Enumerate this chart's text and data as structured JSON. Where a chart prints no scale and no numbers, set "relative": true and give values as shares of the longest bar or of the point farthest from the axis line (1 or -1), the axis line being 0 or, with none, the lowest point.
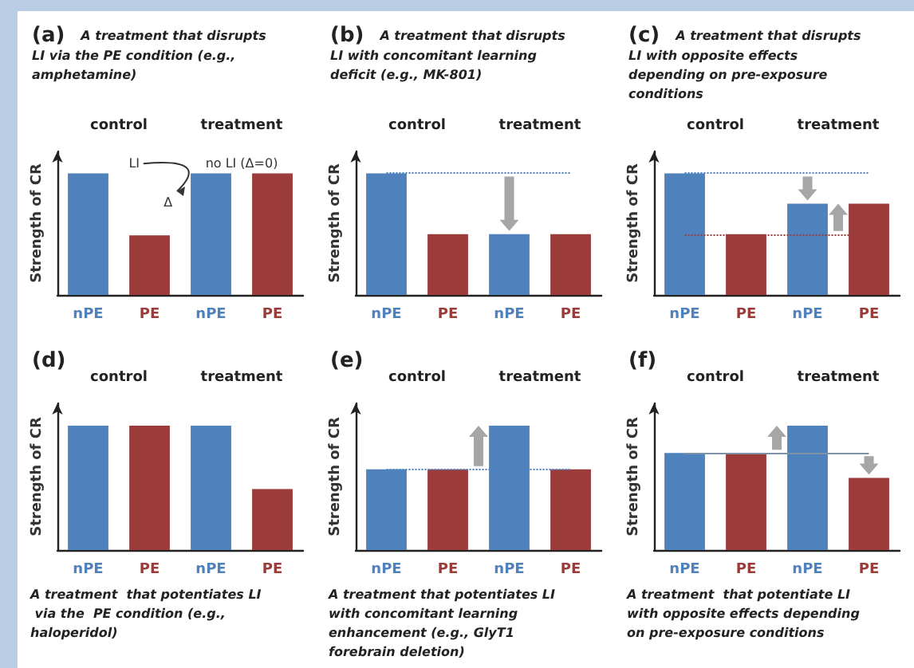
{
  "chart_data": [
    {
      "type": "bar",
      "title": "(a) A treatment that disrupts LI via the PE condition (e.g., amphetamine)",
      "ylabel": "Strength of CR",
      "categories": [
        "nPE",
        "PE",
        "nPE",
        "PE"
      ],
      "values": [
        1,
        0.49,
        1,
        1
      ],
      "colors": [
        "#4f81bd",
        "#9b3b3a",
        "#4f81bd",
        "#9b3b3a"
      ],
      "relative": true,
      "annotations": [
        "control",
        "treatment",
        "LI",
        "Δ",
        "no LI (Δ=0)"
      ]
    },
    {
      "type": "bar",
      "title": "(b) A treatment that disrupts LI with concomitant learning deficit (e.g., MK-801)",
      "ylabel": "Strength of CR",
      "categories": [
        "nPE",
        "PE",
        "nPE",
        "PE"
      ],
      "values": [
        1,
        0.5,
        0.5,
        0.5
      ],
      "colors": [
        "#4f81bd",
        "#9b3b3a",
        "#4f81bd",
        "#9b3b3a"
      ],
      "relative": true,
      "annotations": [
        "control",
        "treatment"
      ],
      "ref_lines": [
        {
          "axis": "y",
          "value": 1,
          "color": "#4f81bd",
          "line_style": "dotted"
        }
      ]
    },
    {
      "type": "bar",
      "title": "(c) A treatment that disrupts LI with opposite effects depending on pre-exposure conditions",
      "ylabel": "Strength of CR",
      "categories": [
        "nPE",
        "PE",
        "nPE",
        "PE"
      ],
      "values": [
        1,
        0.5,
        0.75,
        0.75
      ],
      "colors": [
        "#4f81bd",
        "#9b3b3a",
        "#4f81bd",
        "#9b3b3a"
      ],
      "relative": true,
      "annotations": [
        "control",
        "treatment"
      ],
      "ref_lines": [
        {
          "axis": "y",
          "value": 1,
          "color": "#4f81bd",
          "line_style": "dotted"
        },
        {
          "axis": "y",
          "value": 0.5,
          "color": "#9b3b3a",
          "line_style": "dotted"
        }
      ]
    },
    {
      "type": "bar",
      "title": "(d)",
      "subtitle": "A treatment  that potentiates LI via the  PE condition (e.g., haloperidol)",
      "ylabel": "Strength of CR",
      "categories": [
        "nPE",
        "PE",
        "nPE",
        "PE"
      ],
      "values": [
        1,
        1,
        1,
        0.49
      ],
      "colors": [
        "#4f81bd",
        "#9b3b3a",
        "#4f81bd",
        "#9b3b3a"
      ],
      "relative": true,
      "annotations": [
        "control",
        "treatment"
      ]
    },
    {
      "type": "bar",
      "title": "(e)",
      "subtitle": "A treatment that potentiates LI with concomitant learning enhancement (e.g., GlyT1 forebrain deletion)",
      "ylabel": "Strength of CR",
      "categories": [
        "nPE",
        "PE",
        "nPE",
        "PE"
      ],
      "values": [
        0.65,
        0.65,
        1,
        0.65
      ],
      "colors": [
        "#4f81bd",
        "#9b3b3a",
        "#4f81bd",
        "#9b3b3a"
      ],
      "relative": true,
      "annotations": [
        "control",
        "treatment"
      ],
      "ref_lines": [
        {
          "axis": "y",
          "value": 0.65,
          "color": "#4f81bd",
          "line_style": "dotted"
        }
      ]
    },
    {
      "type": "bar",
      "title": "(f)",
      "subtitle": "A treatment  that potentiate LI with opposite effects depending on pre-exposure conditions",
      "ylabel": "Strength of CR",
      "categories": [
        "nPE",
        "PE",
        "nPE",
        "PE"
      ],
      "values": [
        0.78,
        0.78,
        1,
        0.58
      ],
      "colors": [
        "#4f81bd",
        "#9b3b3a",
        "#4f81bd",
        "#9b3b3a"
      ],
      "relative": true,
      "annotations": [
        "control",
        "treatment"
      ],
      "ref_lines": [
        {
          "axis": "y",
          "value": 0.78,
          "color": "#7f93a8",
          "line_style": "solid"
        }
      ]
    }
  ]
}
